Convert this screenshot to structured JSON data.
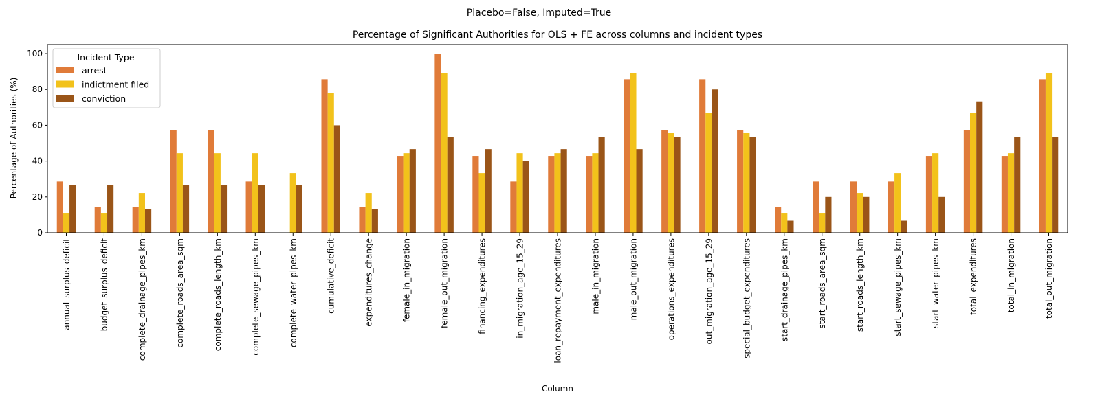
{
  "figure": {
    "suptitle": "Placebo=False, Imputed=True"
  },
  "chart_data": {
    "type": "bar",
    "title": "Percentage of Significant Authorities for OLS + FE across columns and incident types",
    "xlabel": "Column",
    "ylabel": "Percentage of Authorities (%)",
    "ylim": [
      0,
      105
    ],
    "yticks": [
      0,
      20,
      40,
      60,
      80,
      100
    ],
    "grid": false,
    "legend": {
      "title": "Incident Type",
      "placement": "top-left"
    },
    "categories": [
      "annual_surplus_deficit",
      "budget_surplus_deficit",
      "complete_drainage_pipes_km",
      "complete_roads_area_sqm",
      "complete_roads_length_km",
      "complete_sewage_pipes_km",
      "complete_water_pipes_km",
      "cumulative_deficit",
      "expenditures_change",
      "female_in_migration",
      "female_out_migration",
      "financing_expenditures",
      "in_migration_age_15_29",
      "loan_repayment_expenditures",
      "male_in_migration",
      "male_out_migration",
      "operations_expenditures",
      "out_migration_age_15_29",
      "special_budget_expenditures",
      "start_drainage_pipes_km",
      "start_roads_area_sqm",
      "start_roads_length_km",
      "start_sewage_pipes_km",
      "start_water_pipes_km",
      "total_expenditures",
      "total_in_migration",
      "total_out_migration"
    ],
    "series": [
      {
        "name": "arrest",
        "color": "#e07b39",
        "values": [
          28.6,
          14.3,
          14.3,
          57.1,
          57.1,
          28.6,
          0,
          85.7,
          14.3,
          42.9,
          100,
          42.9,
          28.6,
          42.9,
          42.9,
          85.7,
          57.1,
          85.7,
          57.1,
          14.3,
          28.6,
          28.6,
          28.6,
          42.9,
          57.1,
          42.9,
          85.7
        ]
      },
      {
        "name": "indictment filed",
        "color": "#f2c21b",
        "values": [
          11.1,
          11.1,
          22.2,
          44.4,
          44.4,
          44.4,
          33.3,
          77.8,
          22.2,
          44.4,
          88.9,
          33.3,
          44.4,
          44.4,
          44.4,
          88.9,
          55.6,
          66.7,
          55.6,
          11.1,
          11.1,
          22.2,
          33.3,
          44.4,
          66.7,
          44.4,
          88.9
        ]
      },
      {
        "name": "conviction",
        "color": "#9a5518",
        "values": [
          26.7,
          26.7,
          13.3,
          26.7,
          26.7,
          26.7,
          26.7,
          60.0,
          13.3,
          46.7,
          53.3,
          46.7,
          40.0,
          46.7,
          53.3,
          46.7,
          53.3,
          80.0,
          53.3,
          6.7,
          20.0,
          20.0,
          6.7,
          20.0,
          73.3,
          53.3,
          53.3
        ]
      }
    ]
  }
}
